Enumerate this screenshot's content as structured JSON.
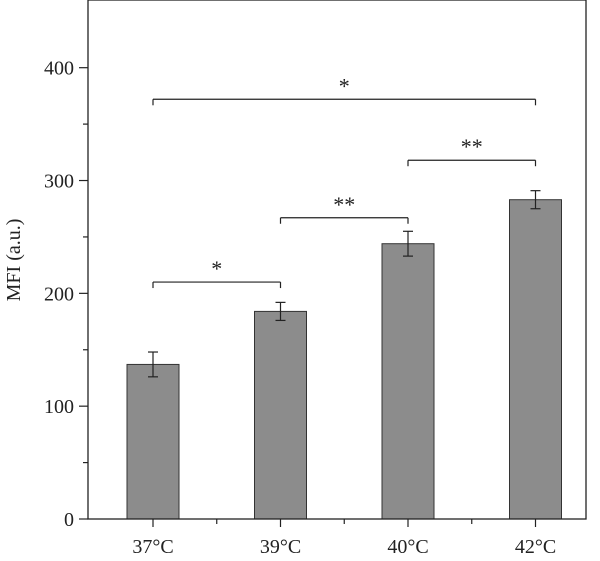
{
  "chart_data": {
    "type": "bar",
    "title": "",
    "xlabel": "",
    "ylabel": "MFI (a.u.)",
    "ylim": [
      0,
      460
    ],
    "yticks": [
      0,
      100,
      200,
      300,
      400
    ],
    "ytick_labels": [
      "0",
      "100",
      "200",
      "300",
      "400"
    ],
    "categories": [
      "37°C",
      "39°C",
      "40°C",
      "42°C"
    ],
    "values": [
      137,
      184,
      244,
      283
    ],
    "errors": [
      11,
      8,
      11,
      8
    ],
    "bar_color": "#8c8c8c",
    "grid": false,
    "significance": [
      {
        "from": 0,
        "to": 1,
        "y": 210,
        "label": "*"
      },
      {
        "from": 1,
        "to": 2,
        "y": 267,
        "label": "**"
      },
      {
        "from": 2,
        "to": 3,
        "y": 318,
        "label": "**"
      },
      {
        "from": 0,
        "to": 3,
        "y": 372,
        "label": "*"
      }
    ]
  }
}
